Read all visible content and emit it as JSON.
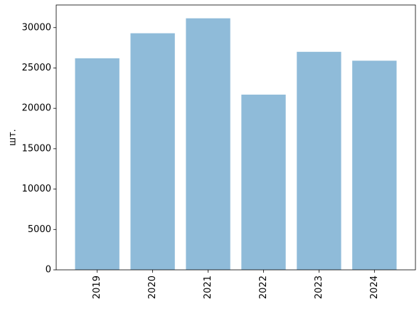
{
  "chart_data": {
    "type": "bar",
    "ylabel": "шт.",
    "categories": [
      "2019",
      "2020",
      "2021",
      "2022",
      "2023",
      "2024"
    ],
    "values": [
      26200,
      29300,
      31150,
      21700,
      27000,
      25900
    ],
    "color": "#8fbbd9",
    "ylim": [
      0,
      32800
    ],
    "yticks": [
      0,
      5000,
      10000,
      15000,
      20000,
      25000,
      30000
    ],
    "grid": false
  }
}
